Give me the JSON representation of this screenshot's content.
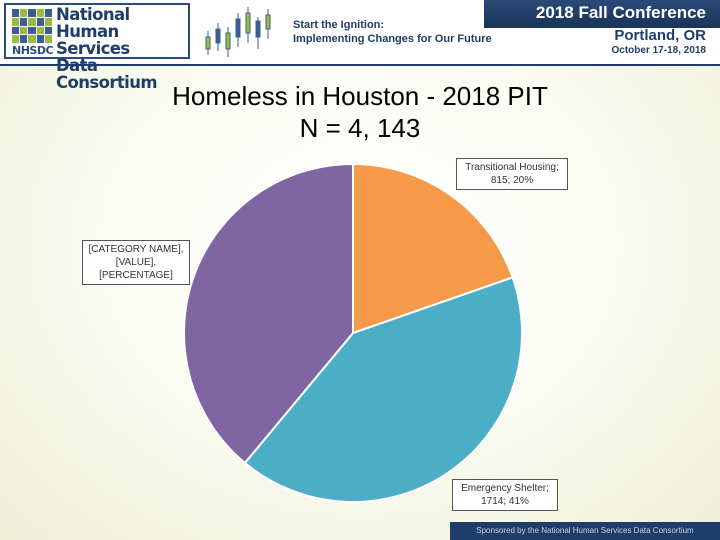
{
  "header": {
    "logo": {
      "small": "NHSDC",
      "line1": "National",
      "line2": "Human Services",
      "line3": "Data Consortium"
    },
    "tagline": {
      "line1": "Start the Ignition:",
      "line2": "Implementing Changes for Our Future"
    },
    "conference": {
      "title": "2018 Fall Conference",
      "place": "Portland, OR",
      "dates": "October 17-18, 2018"
    }
  },
  "slide": {
    "title_line1": "Homeless in Houston - 2018 PIT",
    "title_line2": "N = 4, 143"
  },
  "chart_data": {
    "type": "pie",
    "title": "Homeless in Houston - 2018 PIT N = 4, 143",
    "slices": [
      {
        "label": "Transitional Housing",
        "value": 815,
        "percent": 20,
        "color": "#f59a48",
        "label_lines": [
          "Transitional Housing;",
          "815; 20%"
        ]
      },
      {
        "label": "Emergency Shelter",
        "value": 1714,
        "percent": 41,
        "color": "#4badc6",
        "label_lines": [
          "Emergency Shelter;",
          "1714; 41%"
        ]
      },
      {
        "label": "[CATEGORY NAME]",
        "value": 1614,
        "percent": 39,
        "color": "#8065a3",
        "label_lines": [
          "[CATEGORY NAME],",
          "[VALUE],",
          "[PERCENTAGE]"
        ]
      }
    ],
    "start_angle_deg": 0,
    "direction": "clockwise",
    "legend": "none"
  },
  "footer": {
    "text": "Sponsored by the National Human Services Data Consortium"
  }
}
